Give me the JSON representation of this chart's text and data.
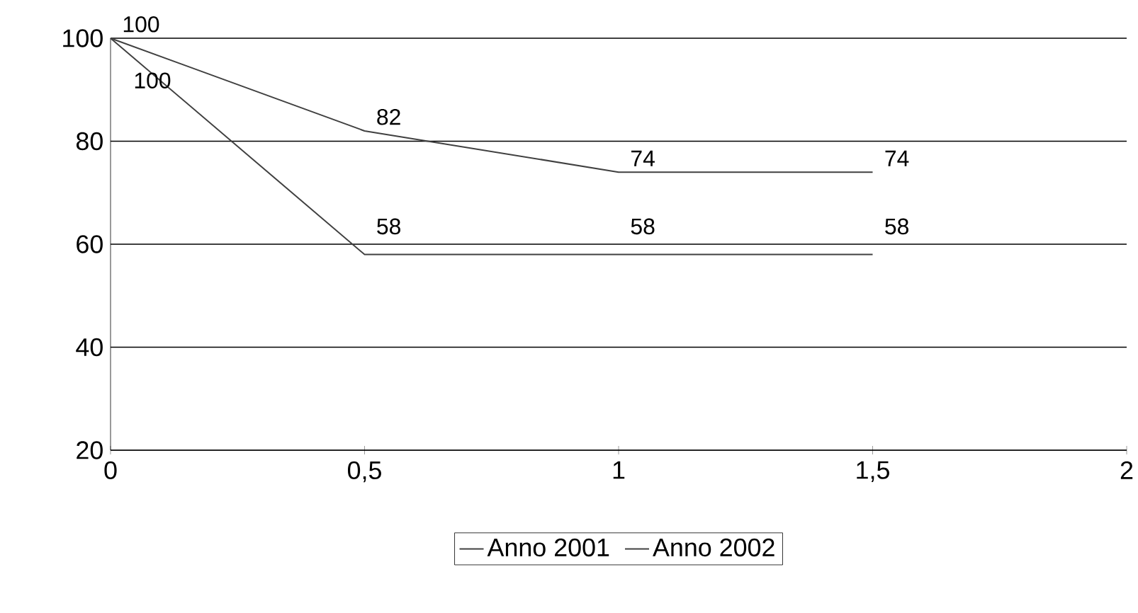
{
  "chart_data": {
    "type": "line",
    "x": [
      0,
      0.5,
      1,
      1.5
    ],
    "series": [
      {
        "name": "Anno 2001",
        "color": "#404040",
        "values": [
          100,
          82,
          74,
          74
        ]
      },
      {
        "name": "Anno 2002",
        "color": "#404040",
        "values": [
          100,
          58,
          58,
          58
        ]
      }
    ],
    "xlim": [
      0,
      2
    ],
    "ylim": [
      20,
      100
    ],
    "xticks": [
      0,
      {
        "value": 0.5,
        "label": "0,5"
      },
      1,
      {
        "value": 1.5,
        "label": "1,5"
      },
      2
    ],
    "yticks": [
      20,
      40,
      60,
      80,
      100
    ],
    "grid": "y",
    "legend": "bottom",
    "data_labels": true,
    "marker": "none",
    "line_style": "solid"
  }
}
